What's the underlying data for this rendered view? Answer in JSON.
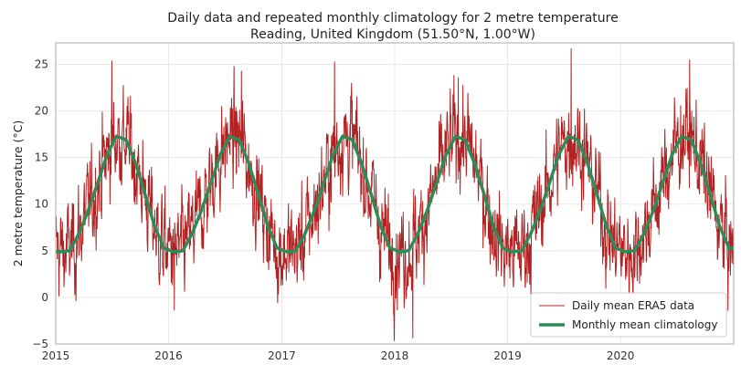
{
  "chart_data": {
    "type": "line",
    "title": "Daily data and repeated monthly climatology for 2 metre temperature",
    "subtitle": "Reading, United Kingdom (51.50°N, 1.00°W)",
    "ylabel": "2 metre temperature (°C)",
    "xlabel": "",
    "xlim": [
      "2015-01-01",
      "2020-12-31"
    ],
    "ylim": [
      -5,
      27.3
    ],
    "xticks": [
      "2015",
      "2016",
      "2017",
      "2018",
      "2019",
      "2020"
    ],
    "yticks": [
      -5,
      0,
      5,
      10,
      15,
      20,
      25
    ],
    "grid": true,
    "legend_placement": "lower-right",
    "series": [
      {
        "name": "Daily mean ERA5 data",
        "color": "#b22222",
        "noise_sd": 2.6,
        "note_points": [
          {
            "x": "2015-07-01",
            "y": 25.4
          },
          {
            "x": "2016-08-23",
            "y": 24.3
          },
          {
            "x": "2017-06-20",
            "y": 25.3
          },
          {
            "x": "2018-02-28",
            "y": -4.4
          },
          {
            "x": "2018-07-25",
            "y": 23.6
          },
          {
            "x": "2019-07-25",
            "y": 26.7
          },
          {
            "x": "2020-08-11",
            "y": 25.5
          },
          {
            "x": "2016-01-19",
            "y": -1.4
          }
        ]
      },
      {
        "name": "Monthly mean climatology",
        "color": "#2e8b57",
        "monthly_values": [
          4.9,
          5.0,
          6.8,
          9.3,
          12.3,
          15.3,
          17.3,
          16.9,
          14.4,
          11.1,
          7.7,
          5.3
        ]
      }
    ]
  }
}
